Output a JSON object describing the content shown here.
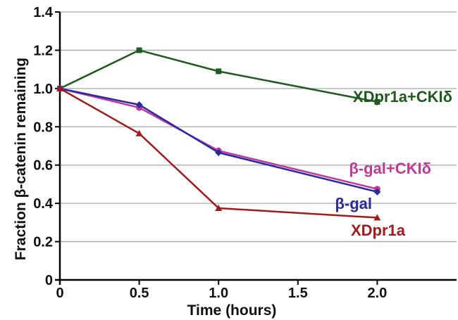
{
  "chart_data": {
    "type": "line",
    "title": "",
    "xlabel": "Time (hours)",
    "ylabel": "Fraction β-catenin remaining",
    "xlim": [
      0,
      2.5
    ],
    "ylim": [
      0,
      1.4
    ],
    "x_ticks": [
      "0",
      "0.5",
      "1.0",
      "1.5",
      "2.0"
    ],
    "x_tick_values": [
      0,
      0.5,
      1.0,
      1.5,
      2.0
    ],
    "y_ticks": [
      "0",
      "0.2",
      "0.4",
      "0.6",
      "0.8",
      "1.0",
      "1.2",
      "1.4"
    ],
    "y_tick_values": [
      0,
      0.2,
      0.4,
      0.6,
      0.8,
      1.0,
      1.2,
      1.4
    ],
    "grid": "horizontal",
    "legend": "inline labels at line ends",
    "series": [
      {
        "name": "XDpr1a+CKIδ",
        "color": "#1f5a1f",
        "marker": "square",
        "x": [
          0,
          0.5,
          1.0,
          2.0
        ],
        "values": [
          1.0,
          1.2,
          1.09,
          0.93
        ]
      },
      {
        "name": "β-gal+CKIδ",
        "color": "#c0399a",
        "marker": "circle",
        "x": [
          0,
          0.5,
          1.0,
          2.0
        ],
        "values": [
          1.0,
          0.9,
          0.675,
          0.475
        ]
      },
      {
        "name": "β-gal",
        "color": "#2a2aa0",
        "marker": "diamond",
        "x": [
          0,
          0.5,
          1.0,
          2.0
        ],
        "values": [
          1.0,
          0.915,
          0.665,
          0.46
        ]
      },
      {
        "name": "XDpr1a",
        "color": "#a01c1c",
        "marker": "triangle",
        "x": [
          0,
          0.5,
          1.0,
          2.0
        ],
        "values": [
          1.0,
          0.765,
          0.375,
          0.325
        ]
      }
    ]
  }
}
